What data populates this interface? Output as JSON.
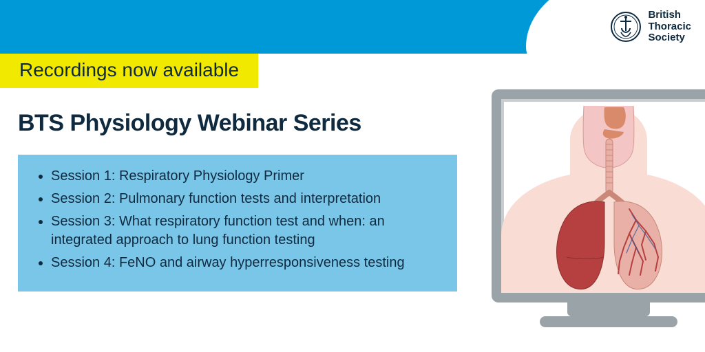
{
  "colors": {
    "top_band": "#0099d8",
    "yellow": "#f2e900",
    "blue_box": "#7ac6e8",
    "dark_text": "#0f2a3f",
    "monitor_frame": "#9aa3a8",
    "white": "#ffffff",
    "lung_pink": "#f4c5c5",
    "lung_red": "#b5403f",
    "skin": "#f9dcd4",
    "throat": "#d88a6a"
  },
  "logo": {
    "line1": "British",
    "line2": "Thoracic",
    "line3": "Society"
  },
  "banner": {
    "text": "Recordings now available",
    "fontsize": 28,
    "color": "#0f2a3f"
  },
  "title": {
    "text": "BTS Physiology Webinar Series",
    "fontsize": 34
  },
  "sessions": {
    "fontsize": 20,
    "line_height": 1.35,
    "items": [
      "Session 1: Respiratory Physiology Primer",
      "Session 2: Pulmonary function tests and interpretation",
      "Session 3: What respiratory function test and when: an integrated approach to lung function testing",
      "Session 4: FeNO and airway hyperresponsiveness testing"
    ]
  }
}
